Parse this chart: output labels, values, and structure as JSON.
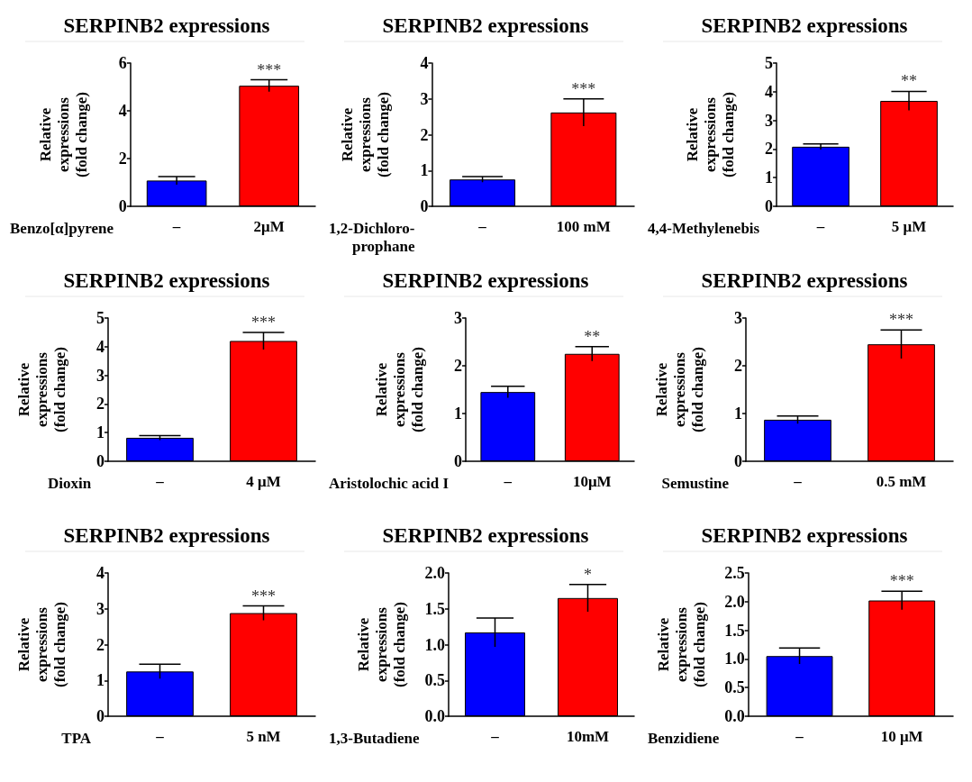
{
  "chart_data": [
    {
      "type": "bar",
      "title": "SERPINB2 expressions",
      "ylabel": "Relative\nexpressions\n(fold change)",
      "xlabel": "Benzo[α]pyrene",
      "categories": [
        "–",
        "2μM"
      ],
      "values": [
        1.08,
        5.05
      ],
      "errors": [
        0.17,
        0.25
      ],
      "colors": [
        "#0000ff",
        "#ff0000"
      ],
      "ylim": [
        0,
        6
      ],
      "yticks": [
        0,
        2,
        4,
        6
      ],
      "grid": false,
      "annotations": [
        {
          "text": "***",
          "x": "2μM",
          "y": 5.3
        }
      ]
    },
    {
      "type": "bar",
      "title": "SERPINB2 expressions",
      "ylabel": "Relative\nexpressions\n(fold change)",
      "xlabel": "1,2-Dichloro-\nprophane",
      "categories": [
        "–",
        "100 mM"
      ],
      "values": [
        0.75,
        2.62
      ],
      "errors": [
        0.08,
        0.38
      ],
      "colors": [
        "#0000ff",
        "#ff0000"
      ],
      "ylim": [
        0,
        4
      ],
      "yticks": [
        0,
        1,
        2,
        3,
        4
      ],
      "grid": false,
      "annotations": [
        {
          "text": "***",
          "x": "100 mM",
          "y": 3.0
        }
      ]
    },
    {
      "type": "bar",
      "title": "SERPINB2 expressions",
      "ylabel": "Relative\nexpressions\n(fold change)",
      "xlabel": "4,4-Methylenebis",
      "categories": [
        "–",
        "5 μM"
      ],
      "values": [
        2.08,
        3.68
      ],
      "errors": [
        0.1,
        0.33
      ],
      "colors": [
        "#0000ff",
        "#ff0000"
      ],
      "ylim": [
        0,
        5
      ],
      "yticks": [
        0,
        1,
        2,
        3,
        4,
        5
      ],
      "grid": false,
      "annotations": [
        {
          "text": "**",
          "x": "5 μM",
          "y": 4.01
        }
      ]
    },
    {
      "type": "bar",
      "title": "SERPINB2 expressions",
      "ylabel": "Relative\nexpressions\n(fold change)",
      "xlabel": "Dioxin",
      "categories": [
        "–",
        "4 μM"
      ],
      "values": [
        0.82,
        4.2
      ],
      "errors": [
        0.08,
        0.3
      ],
      "colors": [
        "#0000ff",
        "#ff0000"
      ],
      "ylim": [
        0,
        5
      ],
      "yticks": [
        0,
        1,
        2,
        3,
        4,
        5
      ],
      "grid": false,
      "annotations": [
        {
          "text": "***",
          "x": "4 μM",
          "y": 4.5
        }
      ]
    },
    {
      "type": "bar",
      "title": "SERPINB2 expressions",
      "ylabel": "Relative\nexpressions\n(fold change)",
      "xlabel": "Aristolochic acid I",
      "categories": [
        "–",
        "10μM"
      ],
      "values": [
        1.45,
        2.25
      ],
      "errors": [
        0.12,
        0.15
      ],
      "colors": [
        "#0000ff",
        "#ff0000"
      ],
      "ylim": [
        0,
        3
      ],
      "yticks": [
        0,
        1,
        2,
        3
      ],
      "grid": false,
      "annotations": [
        {
          "text": "**",
          "x": "10μM",
          "y": 2.4
        }
      ]
    },
    {
      "type": "bar",
      "title": "SERPINB2 expressions",
      "ylabel": "Relative\nexpressions\n(fold change)",
      "xlabel": "Semustine",
      "categories": [
        "–",
        "0.5 mM"
      ],
      "values": [
        0.87,
        2.45
      ],
      "errors": [
        0.08,
        0.3
      ],
      "colors": [
        "#0000ff",
        "#ff0000"
      ],
      "ylim": [
        0,
        3
      ],
      "yticks": [
        0,
        1,
        2,
        3
      ],
      "grid": false,
      "annotations": [
        {
          "text": "***",
          "x": "0.5 mM",
          "y": 2.75
        }
      ]
    },
    {
      "type": "bar",
      "title": "SERPINB2 expressions",
      "ylabel": "Relative\nexpressions\n(fold change)",
      "xlabel": "TPA",
      "categories": [
        "–",
        "5 nM"
      ],
      "values": [
        1.25,
        2.88
      ],
      "errors": [
        0.2,
        0.2
      ],
      "colors": [
        "#0000ff",
        "#ff0000"
      ],
      "ylim": [
        0,
        4
      ],
      "yticks": [
        0,
        1,
        2,
        3,
        4
      ],
      "grid": false,
      "annotations": [
        {
          "text": "***",
          "x": "5 nM",
          "y": 3.08
        }
      ]
    },
    {
      "type": "bar",
      "title": "SERPINB2 expressions",
      "ylabel": "Relative\nexpressions\n(fold change)",
      "xlabel": "1,3-Butadiene",
      "categories": [
        "–",
        "10mM"
      ],
      "values": [
        1.17,
        1.65
      ],
      "errors": [
        0.2,
        0.19
      ],
      "colors": [
        "#0000ff",
        "#ff0000"
      ],
      "ylim": [
        0,
        2
      ],
      "yticks": [
        {
          "value": 0,
          "label": "0.0"
        },
        {
          "value": 0.5,
          "label": "0.5"
        },
        {
          "value": 1,
          "label": "1.0"
        },
        {
          "value": 1.5,
          "label": "1.5"
        },
        {
          "value": 2,
          "label": "2.0"
        }
      ],
      "grid": false,
      "annotations": [
        {
          "text": "*",
          "x": "10mM",
          "y": 1.84
        }
      ]
    },
    {
      "type": "bar",
      "title": "SERPINB2 expressions",
      "ylabel": "Relative\nexpressions\n(fold change)",
      "xlabel": "Benzidiene",
      "categories": [
        "–",
        "10 μM"
      ],
      "values": [
        1.05,
        2.02
      ],
      "errors": [
        0.14,
        0.16
      ],
      "colors": [
        "#0000ff",
        "#ff0000"
      ],
      "ylim": [
        0,
        2.5
      ],
      "yticks": [
        {
          "value": 0,
          "label": "0.0"
        },
        {
          "value": 0.5,
          "label": "0.5"
        },
        {
          "value": 1,
          "label": "1.0"
        },
        {
          "value": 1.5,
          "label": "1.5"
        },
        {
          "value": 2,
          "label": "2.0"
        },
        {
          "value": 2.5,
          "label": "2.5"
        }
      ],
      "grid": false,
      "annotations": [
        {
          "text": "***",
          "x": "10 μM",
          "y": 2.18
        }
      ]
    }
  ]
}
